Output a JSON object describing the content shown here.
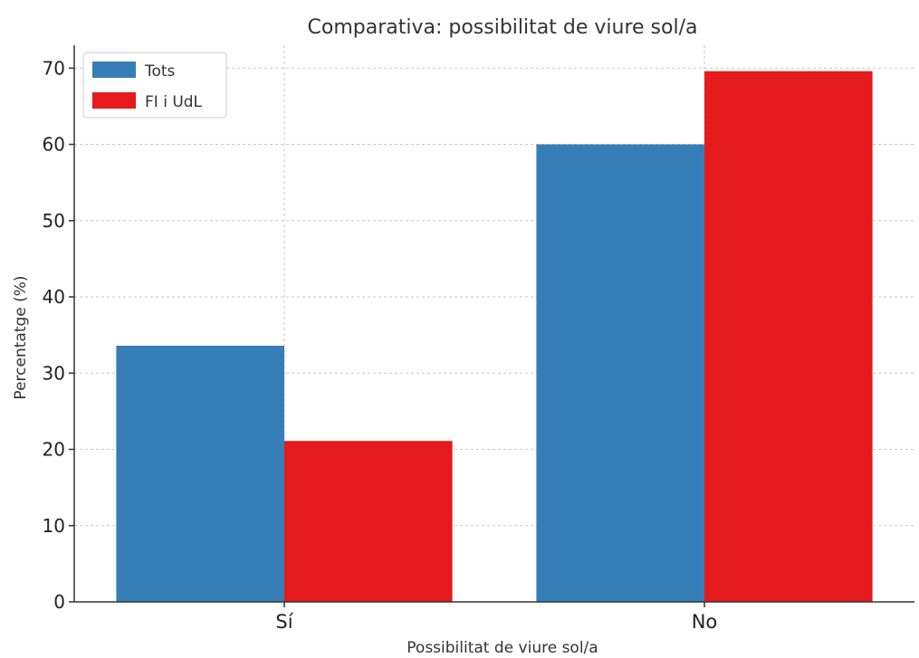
{
  "chart_data": {
    "type": "bar",
    "title": "Comparativa: possibilitat de viure sol/a",
    "xlabel": "Possibilitat de viure sol/a",
    "ylabel": "Percentatge (%)",
    "categories": [
      "Sí",
      "No"
    ],
    "series": [
      {
        "name": "Tots",
        "values": [
          33.6,
          60.0
        ],
        "color": "#377eb8"
      },
      {
        "name": "FI i UdL",
        "values": [
          21.1,
          69.6
        ],
        "color": "#e41a1c"
      }
    ],
    "ylim": [
      0,
      73
    ],
    "yticks": [
      0,
      10,
      20,
      30,
      40,
      50,
      60,
      70
    ],
    "grid": true,
    "legend": "top-left"
  }
}
